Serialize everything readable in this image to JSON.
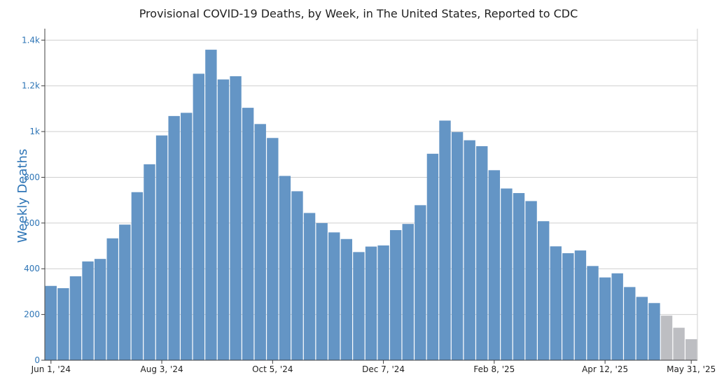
{
  "chart_data": {
    "type": "bar",
    "title": "Provisional COVID-19 Deaths, by Week, in The United States, Reported to CDC",
    "xlabel": "",
    "ylabel": "Weekly Deaths",
    "ylim": [
      0,
      1450
    ],
    "yticks": [
      0,
      200,
      400,
      600,
      800,
      1000,
      1200,
      1400
    ],
    "ytick_labels": [
      "0",
      "200",
      "400",
      "600",
      "800",
      "1k",
      "1.2k",
      "1.4k"
    ],
    "xtick_labels": [
      "Jun 1, '24",
      "Aug 3, '24",
      "Oct 5, '24",
      "Dec 7, '24",
      "Feb 8, '25",
      "Apr 12, '25",
      "May 31, '25"
    ],
    "xtick_positions": [
      0,
      9,
      18,
      27,
      36,
      45,
      52
    ],
    "grid": true,
    "colors": {
      "reported": "#6495c5",
      "provisional_incomplete": "#bdbec2",
      "axis": "#3f3f3f",
      "grid": "#cfcfcf",
      "ytick_text": "#2e75b6",
      "ylabel_text": "#2e75b6",
      "title_text": "#222222",
      "xtick_text": "#222222"
    },
    "series": [
      {
        "name": "Weekly Deaths",
        "values": [
          325,
          315,
          367,
          432,
          443,
          533,
          593,
          735,
          857,
          983,
          1068,
          1082,
          1253,
          1358,
          1228,
          1242,
          1104,
          1033,
          972,
          806,
          739,
          644,
          600,
          559,
          530,
          473,
          497,
          502,
          569,
          596,
          678,
          903,
          1048,
          998,
          962,
          936,
          831,
          751,
          731,
          696,
          608,
          498,
          468,
          480,
          412,
          362,
          380,
          320,
          277,
          250,
          195,
          142,
          92
        ],
        "incomplete_from_index": 50
      }
    ]
  }
}
